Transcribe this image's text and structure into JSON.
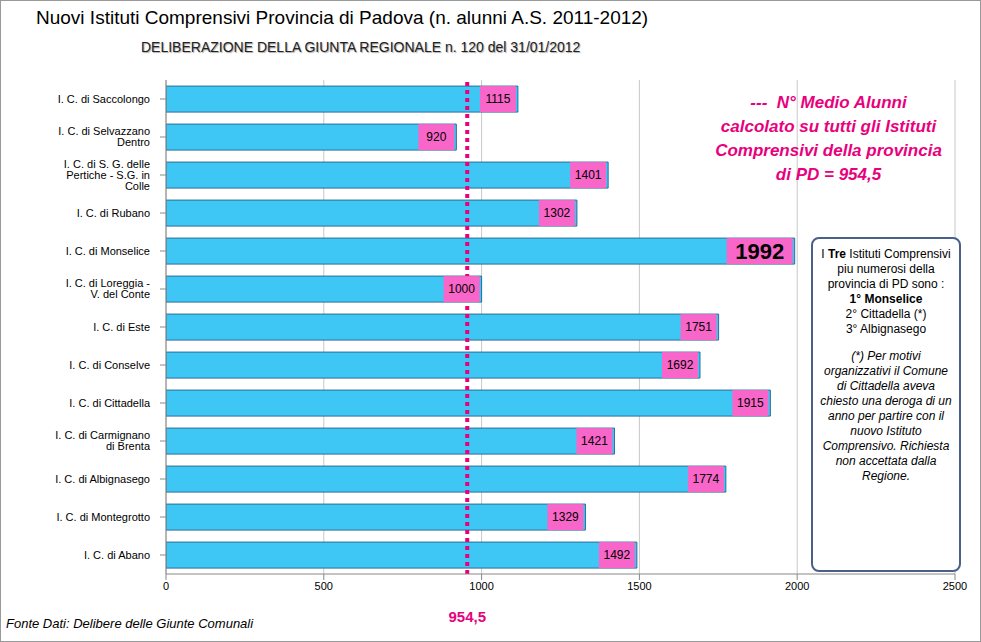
{
  "chart_data": {
    "type": "bar",
    "orientation": "horizontal",
    "title": "Nuovi Istituti Comprensivi Provincia di Padova (n. alunni A.S. 2011-2012)",
    "subtitle": "DELIBERAZIONE DELLA GIUNTA REGIONALE n. 120 del 31/01/2012",
    "categories": [
      "I. C. di Saccolongo",
      "I. C. di Selvazzano Dentro",
      "I. C. di S. G. delle Pertiche - S.G. in Colle",
      "I. C. di Rubano",
      "I. C. di Monselice",
      "I. C. di Loreggia - V. del Conte",
      "I. C. di Este",
      "I. C. di Conselve",
      "I. C. di Cittadella",
      "I. C. di Carmignano di Brenta",
      "I. C. di Albignasego",
      "I. C. di Montegrotto",
      "I. C. di Abano"
    ],
    "values": [
      1115,
      920,
      1401,
      1302,
      1992,
      1000,
      1751,
      1692,
      1915,
      1421,
      1774,
      1329,
      1492
    ],
    "color": "#3ec6f4",
    "xlim": [
      0,
      2500
    ],
    "xticks": [
      0,
      500,
      1000,
      1500,
      2000,
      2500
    ],
    "grid": true,
    "data_labels": true,
    "mean": {
      "value": 954.5,
      "label": "954,5"
    },
    "annotation": [
      "---  N° Medio Alunni",
      "calcolato su tutti gli Istituti",
      "Comprensivi della provincia",
      "di PD = 954,5"
    ],
    "note_box": {
      "intro_before": "I",
      "intro_bold": "Tre",
      "intro_after": "Istituti Comprensivi piu numerosi della provincia di PD sono :",
      "first": "1° Monselice",
      "others": [
        "2° Cittadella (*)",
        "3° Albignasego"
      ],
      "note": "(*) Per motivi organizzativi il Comune di Cittadella aveva chiesto una deroga di un anno per partire con il nuovo Istituto Comprensivo. Richiesta non accettata dalla Regione."
    },
    "source": "Fonte Dati: Delibere delle Giunte Comunali"
  }
}
